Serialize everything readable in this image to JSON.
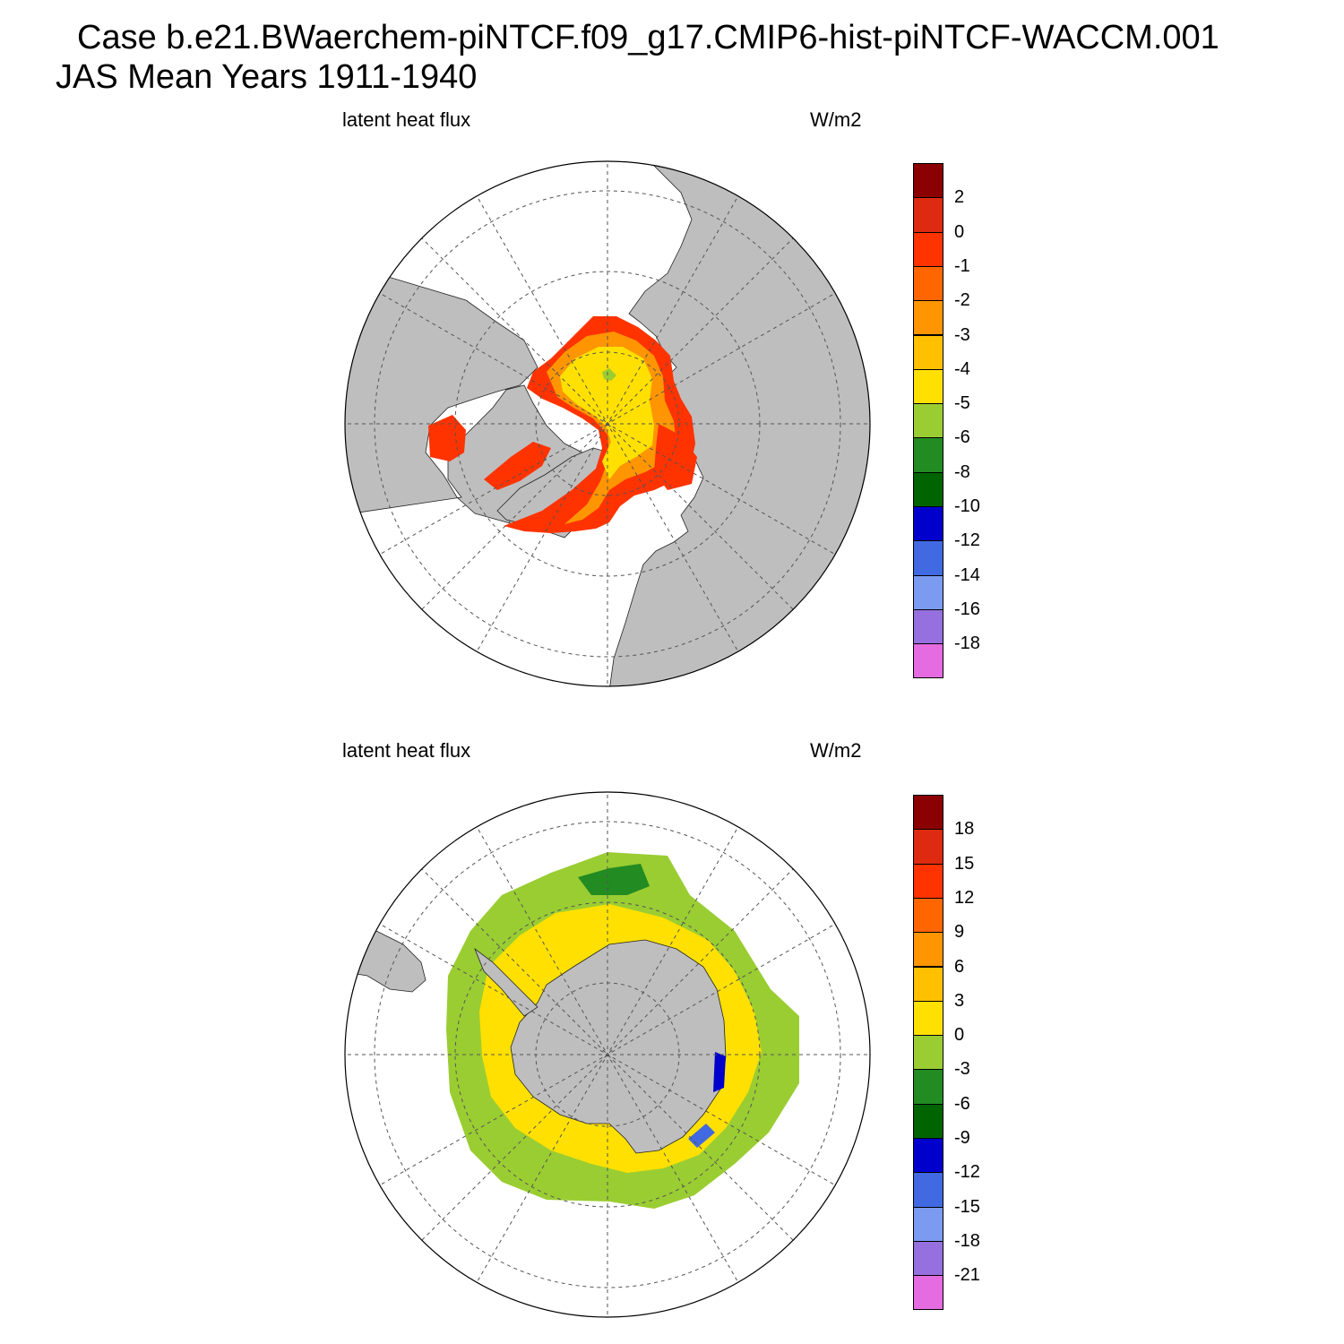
{
  "header": {
    "title": "Case b.e21.BWaerchem-piNTCF.f09_g17.CMIP6-hist-piNTCF-WACCM.001",
    "subtitle": "JAS Mean   Years 1911-1940"
  },
  "panels": [
    {
      "id": "north",
      "variable": "latent heat flux",
      "units": "W/m2",
      "hemisphere": "north polar stereographic",
      "colorbar": {
        "colors": [
          "#e46ce0",
          "#9670de",
          "#7b9bf0",
          "#4169e1",
          "#0000cd",
          "#006400",
          "#228b22",
          "#9acd32",
          "#ffe000",
          "#ffc000",
          "#ff9500",
          "#ff6600",
          "#ff3300",
          "#dd2a10",
          "#8b0000"
        ],
        "levels": [
          "-18",
          "-16",
          "-14",
          "-12",
          "-10",
          "-8",
          "-6",
          "-5",
          "-4",
          "-3",
          "-2",
          "-1",
          "0",
          "2"
        ]
      }
    },
    {
      "id": "south",
      "variable": "latent heat flux",
      "units": "W/m2",
      "hemisphere": "south polar stereographic",
      "colorbar": {
        "colors": [
          "#e46ce0",
          "#9670de",
          "#7b9bf0",
          "#4169e1",
          "#0000cd",
          "#006400",
          "#228b22",
          "#9acd32",
          "#ffe000",
          "#ffc000",
          "#ff9500",
          "#ff6600",
          "#ff3300",
          "#dd2a10",
          "#8b0000"
        ],
        "levels": [
          "-21",
          "-18",
          "-15",
          "-12",
          "-9",
          "-6",
          "-3",
          "0",
          "3",
          "6",
          "9",
          "12",
          "15",
          "18"
        ]
      }
    }
  ],
  "colors": {
    "land": "#bebebe",
    "ocean_missing": "#ffffff",
    "grid": "#555555"
  }
}
